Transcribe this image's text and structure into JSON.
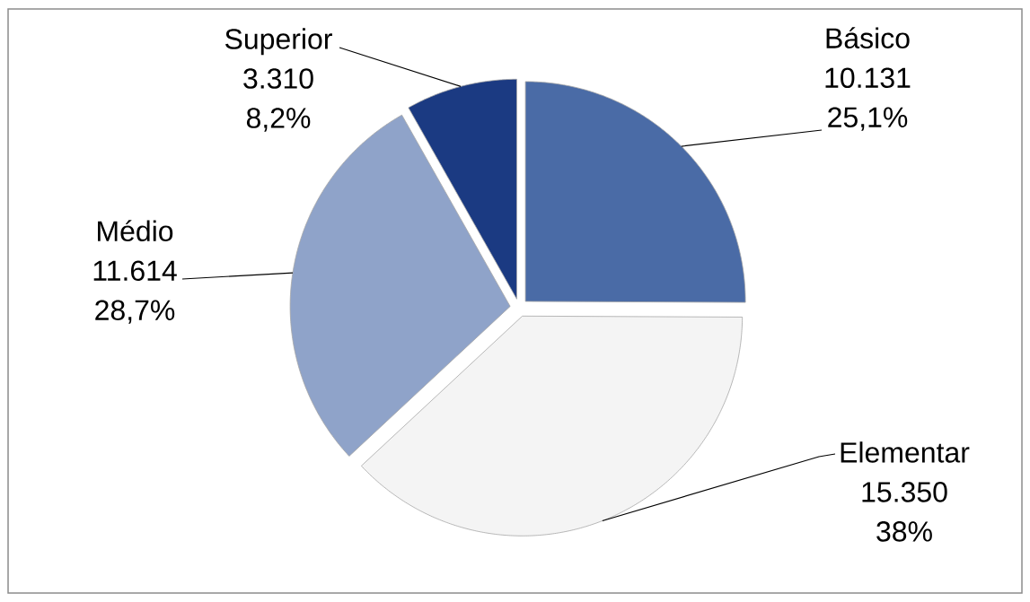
{
  "chart_data": {
    "type": "pie",
    "categories": [
      "Básico",
      "Elementar",
      "Médio",
      "Superior"
    ],
    "values": [
      10131,
      15350,
      11614,
      3310
    ],
    "colors": [
      "#4a6ba6",
      "#f4f4f4",
      "#8fa3c9",
      "#1b3a82"
    ],
    "value_labels": [
      "10.131 25,1%",
      "15.350 38%",
      "11.614 28,7%",
      "3.310 8,2%"
    ]
  }
}
